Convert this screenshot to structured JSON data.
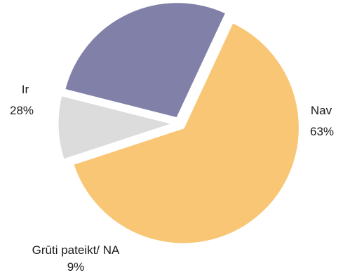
{
  "chart_data": {
    "type": "pie",
    "slices": [
      {
        "label": "Nav",
        "value": 63,
        "value_label": "63%",
        "color": "#F8C674"
      },
      {
        "label": "Grūti pateikt/ NA",
        "value": 9,
        "value_label": "9%",
        "color": "#DCDCDC"
      },
      {
        "label": "Ir",
        "value": 28,
        "value_label": "28%",
        "color": "#8080A8"
      }
    ],
    "start_angle_deg": -65,
    "exploded": true,
    "title": "",
    "legend": "none"
  }
}
